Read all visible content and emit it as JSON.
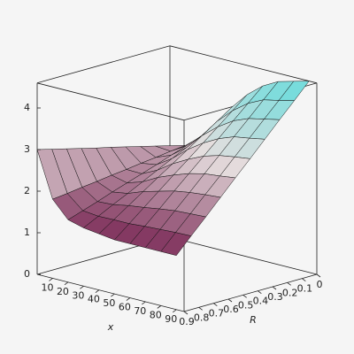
{
  "chart_data": {
    "type": "surface",
    "xlabel": "x",
    "ylabel": "R",
    "x": [
      0,
      10,
      20,
      30,
      40,
      50,
      60,
      70,
      80,
      90
    ],
    "y": [
      0,
      0.1,
      0.2,
      0.3,
      0.4,
      0.5,
      0.6,
      0.7,
      0.8,
      0.9
    ],
    "z": [
      [
        2.2,
        2.29,
        2.38,
        2.47,
        2.56,
        2.64,
        2.73,
        2.82,
        2.91,
        3.0
      ],
      [
        2.3,
        2.26,
        2.21,
        2.17,
        2.12,
        2.08,
        2.03,
        1.99,
        1.94,
        1.9
      ],
      [
        2.6,
        2.48,
        2.36,
        2.23,
        2.11,
        1.99,
        1.87,
        1.74,
        1.62,
        1.5
      ],
      [
        3.0,
        2.82,
        2.64,
        2.47,
        2.29,
        2.11,
        1.93,
        1.76,
        1.58,
        1.4
      ],
      [
        3.5,
        3.26,
        3.02,
        2.78,
        2.54,
        2.31,
        2.07,
        1.83,
        1.59,
        1.35
      ],
      [
        3.9,
        3.61,
        3.32,
        3.03,
        2.74,
        2.46,
        2.17,
        1.88,
        1.59,
        1.3
      ],
      [
        4.2,
        3.88,
        3.56,
        3.23,
        2.91,
        2.59,
        2.27,
        1.94,
        1.62,
        1.3
      ],
      [
        4.4,
        4.06,
        3.71,
        3.37,
        3.02,
        2.68,
        2.33,
        1.99,
        1.64,
        1.3
      ],
      [
        4.5,
        4.14,
        3.79,
        3.43,
        3.08,
        2.72,
        2.37,
        2.01,
        1.66,
        1.3
      ],
      [
        4.6,
        4.23,
        3.87,
        3.5,
        3.13,
        2.77,
        2.4,
        2.03,
        1.67,
        1.3
      ]
    ],
    "xlim": [
      0,
      95
    ],
    "ylim": [
      0,
      0.9
    ],
    "zlim": [
      0,
      4.6
    ],
    "xticks": [
      10,
      20,
      30,
      40,
      50,
      60,
      70,
      80,
      90
    ],
    "yticks": [
      0,
      0.1,
      0.2,
      0.3,
      0.4,
      0.5,
      0.6,
      0.7,
      0.8,
      0.9
    ],
    "zticks": [
      0,
      1,
      2,
      3,
      4
    ],
    "colormap": [
      "#7a2855",
      "#e6dede",
      "#66dcdc"
    ]
  }
}
